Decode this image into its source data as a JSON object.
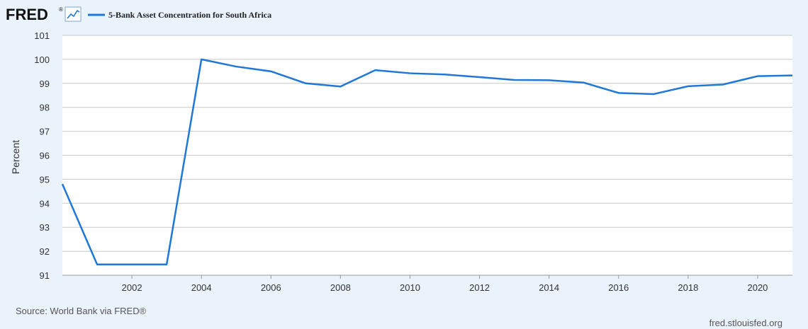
{
  "brand": {
    "logo_text": "FRED",
    "logo_mark": "®",
    "icon": "line-chart-icon"
  },
  "chart_data": {
    "type": "line",
    "title": "",
    "xlabel": "",
    "ylabel": "Percent",
    "xlim": [
      2000,
      2021
    ],
    "ylim": [
      91,
      101
    ],
    "yticks": [
      91,
      92,
      93,
      94,
      95,
      96,
      97,
      98,
      99,
      100,
      101
    ],
    "xticks": [
      2002,
      2004,
      2006,
      2008,
      2010,
      2012,
      2014,
      2016,
      2018,
      2020
    ],
    "grid": true,
    "legend_position": "top-left",
    "series": [
      {
        "name": "5-Bank Asset Concentration for South Africa",
        "color": "#1f77d8",
        "x": [
          2000,
          2001,
          2002,
          2003,
          2004,
          2005,
          2006,
          2007,
          2008,
          2009,
          2010,
          2011,
          2012,
          2013,
          2014,
          2015,
          2016,
          2017,
          2018,
          2019,
          2020,
          2021
        ],
        "values": [
          94.8,
          91.45,
          91.45,
          91.45,
          100.0,
          99.7,
          99.5,
          99.0,
          98.87,
          99.55,
          99.42,
          99.37,
          99.26,
          99.14,
          99.13,
          99.03,
          98.6,
          98.55,
          98.88,
          98.95,
          99.3,
          99.33
        ]
      }
    ]
  },
  "footer": {
    "source": "Source: World Bank via FRED®",
    "site": "fred.stlouisfed.org"
  },
  "colors": {
    "background": "#eaf2fb",
    "plot_background": "#ffffff",
    "gridline": "#c8c8c8",
    "line": "#1f77d8"
  }
}
